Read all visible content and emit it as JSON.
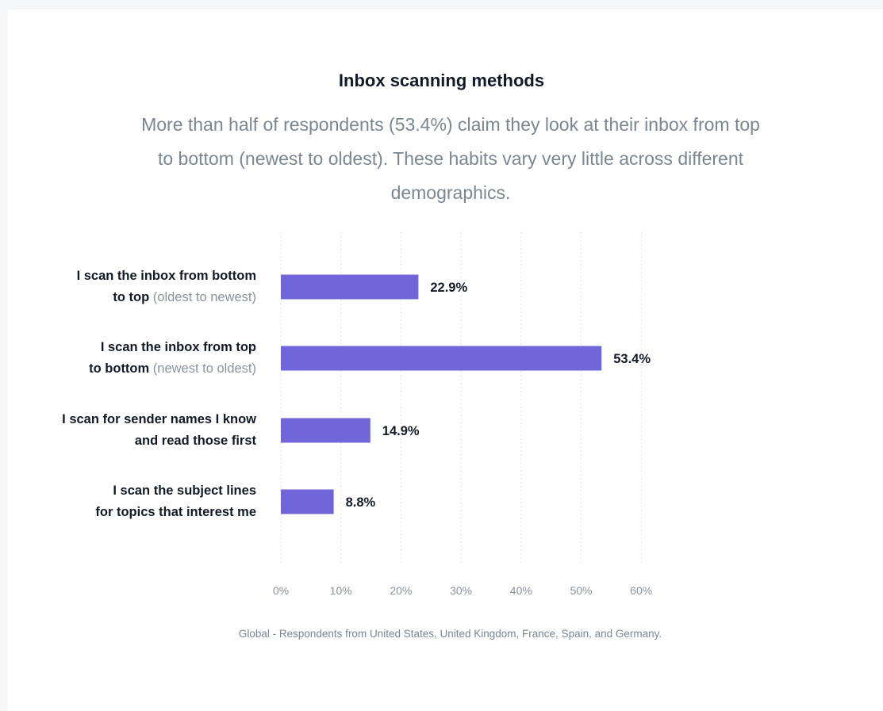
{
  "chart_data": {
    "type": "bar",
    "orientation": "horizontal",
    "title": "Inbox scanning methods",
    "subtitle": "More than half of respondents (53.4%) claim they look at their inbox from top to bottom (newest to oldest). These habits vary very little across different demographics.",
    "categories": [
      {
        "bold1": "I scan the inbox from bottom",
        "bold2": "to top",
        "light": " (oldest to newest)"
      },
      {
        "bold1": "I scan the inbox from top",
        "bold2": "to bottom",
        "light": " (newest to oldest)"
      },
      {
        "bold1": "I scan for sender names I know",
        "bold2": "and read those first",
        "light": ""
      },
      {
        "bold1": "I scan the subject lines",
        "bold2": "for topics that interest me",
        "light": ""
      }
    ],
    "values": [
      22.9,
      53.4,
      14.9,
      8.8
    ],
    "value_labels": [
      "22.9%",
      "53.4%",
      "14.9%",
      "8.8%"
    ],
    "xlim": [
      0,
      60
    ],
    "x_ticks": [
      0,
      10,
      20,
      30,
      40,
      50,
      60
    ],
    "x_tick_labels": [
      "0%",
      "10%",
      "20%",
      "30%",
      "40%",
      "50%",
      "60%"
    ],
    "grid": true,
    "bar_color": "#7166d9",
    "footnote": "Global - Respondents from United States, United Kingdom, France, Spain, and Germany."
  }
}
